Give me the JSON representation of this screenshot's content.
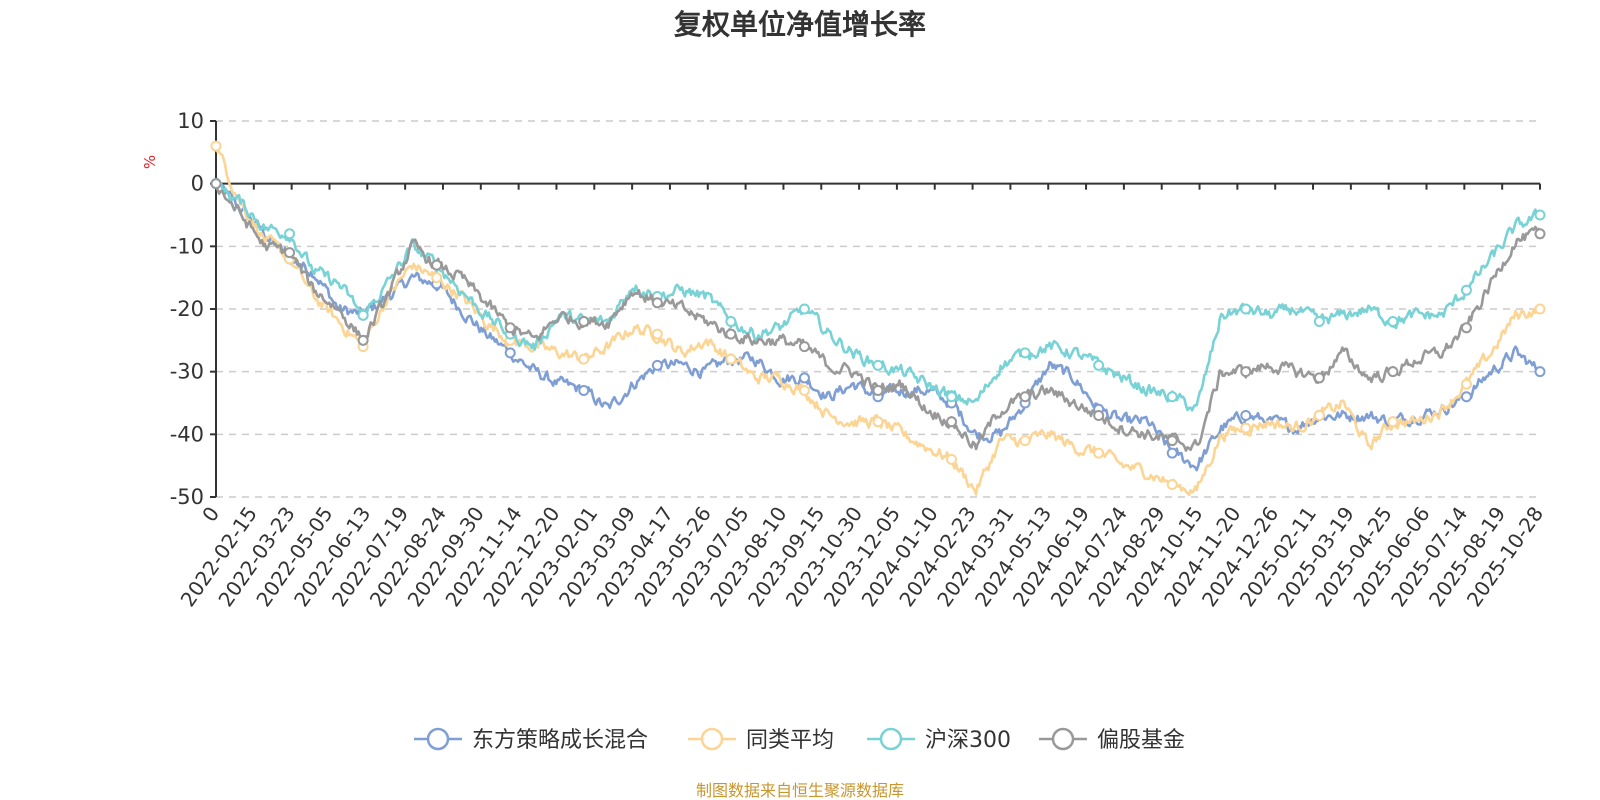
{
  "chart_data": {
    "type": "line",
    "title": "复权单位净值增长率",
    "ylabel": "%",
    "ylim": [
      -50,
      10
    ],
    "yticks": [
      10,
      0,
      -10,
      -20,
      -30,
      -40,
      -50
    ],
    "xlabel": "",
    "x_tick_labels": [
      "0",
      "2022-02-15",
      "2022-03-23",
      "2022-05-05",
      "2022-06-13",
      "2022-07-19",
      "2022-08-24",
      "2022-09-30",
      "2022-11-14",
      "2022-12-20",
      "2023-02-01",
      "2023-03-09",
      "2023-04-17",
      "2023-05-26",
      "2023-07-05",
      "2023-08-10",
      "2023-09-15",
      "2023-10-30",
      "2023-12-05",
      "2024-01-10",
      "2024-02-23",
      "2024-03-31",
      "2024-05-13",
      "2024-06-19",
      "2024-07-24",
      "2024-08-29",
      "2024-10-15",
      "2024-11-20",
      "2024-12-26",
      "2025-02-11",
      "2025-03-19",
      "2025-04-25",
      "2025-06-06",
      "2025-07-14",
      "2025-08-19",
      "2025-10-28"
    ],
    "legend": [
      "东方策略成长混合",
      "同类平均",
      "沪深300",
      "偏股基金"
    ],
    "legend_position": "bottom",
    "grid": "horizontal-dashed",
    "series": [
      {
        "name": "东方策略成长混合",
        "color": "#7f9fd4",
        "values": [
          0,
          -4,
          -8,
          -12,
          -14,
          -20,
          -21,
          -18,
          -15,
          -16,
          -20,
          -24,
          -27,
          -30,
          -32,
          -33,
          -36,
          -32,
          -29,
          -29,
          -30,
          -28,
          -28,
          -31,
          -31,
          -34,
          -32,
          -34,
          -33,
          -33,
          -35,
          -40,
          -40,
          -35,
          -29,
          -31,
          -36,
          -38,
          -38,
          -43,
          -45,
          -39,
          -37,
          -38,
          -39,
          -37,
          -37,
          -37,
          -38,
          -37,
          -36,
          -34,
          -30,
          -27,
          -30
        ]
      },
      {
        "name": "同类平均",
        "color": "#fcd595",
        "values": [
          6,
          -3,
          -9,
          -12,
          -18,
          -22,
          -26,
          -18,
          -13,
          -15,
          -18,
          -22,
          -25,
          -26,
          -27,
          -28,
          -26,
          -23,
          -24,
          -27,
          -25,
          -28,
          -31,
          -31,
          -33,
          -37,
          -38,
          -38,
          -40,
          -42,
          -44,
          -49,
          -41,
          -41,
          -40,
          -42,
          -43,
          -45,
          -46,
          -48,
          -49,
          -40,
          -39,
          -38,
          -39,
          -37,
          -35,
          -42,
          -38,
          -38,
          -36,
          -32,
          -27,
          -21,
          -20
        ]
      },
      {
        "name": "沪深300",
        "color": "#79d2d5",
        "values": [
          0,
          -3,
          -7,
          -8,
          -14,
          -16,
          -21,
          -16,
          -10,
          -13,
          -17,
          -21,
          -24,
          -26,
          -21,
          -22,
          -22,
          -16,
          -18,
          -17,
          -18,
          -22,
          -24,
          -23,
          -20,
          -24,
          -27,
          -29,
          -30,
          -32,
          -34,
          -35,
          -29,
          -27,
          -26,
          -27,
          -29,
          -31,
          -33,
          -34,
          -36,
          -21,
          -20,
          -21,
          -20,
          -22,
          -21,
          -20,
          -22,
          -21,
          -21,
          -17,
          -12,
          -7,
          -5
        ]
      },
      {
        "name": "偏股基金",
        "color": "#999999",
        "values": [
          0,
          -5,
          -10,
          -11,
          -17,
          -20,
          -25,
          -18,
          -10,
          -13,
          -15,
          -19,
          -23,
          -25,
          -21,
          -22,
          -22,
          -17,
          -19,
          -20,
          -22,
          -24,
          -25,
          -25,
          -26,
          -29,
          -30,
          -33,
          -32,
          -36,
          -38,
          -42,
          -36,
          -34,
          -33,
          -35,
          -37,
          -39,
          -40,
          -41,
          -42,
          -30,
          -30,
          -29,
          -30,
          -31,
          -27,
          -31,
          -30,
          -28,
          -27,
          -23,
          -16,
          -9,
          -8
        ]
      }
    ]
  },
  "source_note": "制图数据来自恒生聚源数据库"
}
